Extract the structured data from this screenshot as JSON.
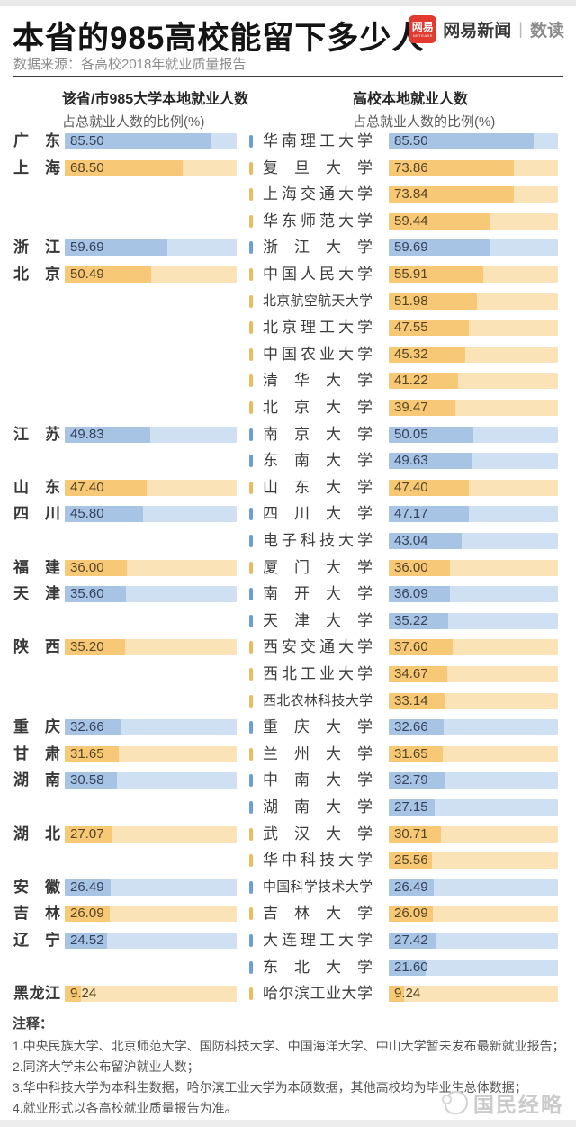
{
  "header": {
    "title": "本省的985高校能留下多少人",
    "source": "数据来源：各高校2018年就业质量报告",
    "logo": {
      "badge_text": "网易",
      "badge_sub": "NETEASE",
      "brand": "网易新闻",
      "divider": "|",
      "section": "数读",
      "badge_color": "#e23a30"
    }
  },
  "columns": {
    "left": {
      "line1": "该省/市985大学本地就业人数",
      "line2": "占总就业人数的比例(%)"
    },
    "right": {
      "line1": "高校本地就业人数",
      "line2": "占总就业人数的比例(%)"
    }
  },
  "chart_data": {
    "type": "bar",
    "orientation": "horizontal",
    "unit": "%",
    "axis_max": 100,
    "palette": {
      "blue": {
        "fill": "#a7c4e4",
        "track": "#cfe0f2",
        "tick": "#6d9ed8",
        "text": "#35425c"
      },
      "orange": {
        "fill": "#f7c977",
        "track": "#fae3b6",
        "tick": "#e9bc5f",
        "text": "#584423"
      }
    },
    "provinces": [
      {
        "name": "广东",
        "value": 85.5,
        "label": "85.50",
        "color": "blue",
        "row": 0
      },
      {
        "name": "上海",
        "value": 68.5,
        "label": "68.50",
        "color": "orange",
        "row": 1
      },
      {
        "name": "浙江",
        "value": 59.69,
        "label": "59.69",
        "color": "blue",
        "row": 4
      },
      {
        "name": "北京",
        "value": 50.49,
        "label": "50.49",
        "color": "orange",
        "row": 5
      },
      {
        "name": "江苏",
        "value": 49.83,
        "label": "49.83",
        "color": "blue",
        "row": 11
      },
      {
        "name": "山东",
        "value": 47.4,
        "label": "47.40",
        "color": "orange",
        "row": 13
      },
      {
        "name": "四川",
        "value": 45.8,
        "label": "45.80",
        "color": "blue",
        "row": 14
      },
      {
        "name": "福建",
        "value": 36.0,
        "label": "36.00",
        "color": "orange",
        "row": 16
      },
      {
        "name": "天津",
        "value": 35.6,
        "label": "35.60",
        "color": "blue",
        "row": 17
      },
      {
        "name": "陕西",
        "value": 35.2,
        "label": "35.20",
        "color": "orange",
        "row": 19
      },
      {
        "name": "重庆",
        "value": 32.66,
        "label": "32.66",
        "color": "blue",
        "row": 22
      },
      {
        "name": "甘肃",
        "value": 31.65,
        "label": "31.65",
        "color": "orange",
        "row": 23
      },
      {
        "name": "湖南",
        "value": 30.58,
        "label": "30.58",
        "color": "blue",
        "row": 24
      },
      {
        "name": "湖北",
        "value": 27.07,
        "label": "27.07",
        "color": "orange",
        "row": 26
      },
      {
        "name": "安徽",
        "value": 26.49,
        "label": "26.49",
        "color": "blue",
        "row": 28
      },
      {
        "name": "吉林",
        "value": 26.09,
        "label": "26.09",
        "color": "orange",
        "row": 29
      },
      {
        "name": "辽宁",
        "value": 24.52,
        "label": "24.52",
        "color": "blue",
        "row": 30
      },
      {
        "name": "黑龙江",
        "value": 9.24,
        "label": "9.24",
        "color": "orange",
        "row": 32
      }
    ],
    "universities": [
      {
        "name": "华南理工大学",
        "value": 85.5,
        "label": "85.50",
        "color": "blue"
      },
      {
        "name": "复旦大学",
        "value": 73.86,
        "label": "73.86",
        "color": "orange"
      },
      {
        "name": "上海交通大学",
        "value": 73.84,
        "label": "73.84",
        "color": "orange"
      },
      {
        "name": "华东师范大学",
        "value": 59.44,
        "label": "59.44",
        "color": "orange"
      },
      {
        "name": "浙江大学",
        "value": 59.69,
        "label": "59.69",
        "color": "blue"
      },
      {
        "name": "中国人民大学",
        "value": 55.91,
        "label": "55.91",
        "color": "orange"
      },
      {
        "name": "北京航空航天大学",
        "value": 51.98,
        "label": "51.98",
        "color": "orange"
      },
      {
        "name": "北京理工大学",
        "value": 47.55,
        "label": "47.55",
        "color": "orange"
      },
      {
        "name": "中国农业大学",
        "value": 45.32,
        "label": "45.32",
        "color": "orange"
      },
      {
        "name": "清华大学",
        "value": 41.22,
        "label": "41.22",
        "color": "orange"
      },
      {
        "name": "北京大学",
        "value": 39.47,
        "label": "39.47",
        "color": "orange"
      },
      {
        "name": "南京大学",
        "value": 50.05,
        "label": "50.05",
        "color": "blue"
      },
      {
        "name": "东南大学",
        "value": 49.63,
        "label": "49.63",
        "color": "blue"
      },
      {
        "name": "山东大学",
        "value": 47.4,
        "label": "47.40",
        "color": "orange"
      },
      {
        "name": "四川大学",
        "value": 47.17,
        "label": "47.17",
        "color": "blue"
      },
      {
        "name": "电子科技大学",
        "value": 43.04,
        "label": "43.04",
        "color": "blue"
      },
      {
        "name": "厦门大学",
        "value": 36.0,
        "label": "36.00",
        "color": "orange"
      },
      {
        "name": "南开大学",
        "value": 36.09,
        "label": "36.09",
        "color": "blue"
      },
      {
        "name": "天津大学",
        "value": 35.22,
        "label": "35.22",
        "color": "blue"
      },
      {
        "name": "西安交通大学",
        "value": 37.6,
        "label": "37.60",
        "color": "orange"
      },
      {
        "name": "西北工业大学",
        "value": 34.67,
        "label": "34.67",
        "color": "orange"
      },
      {
        "name": "西北农林科技大学",
        "value": 33.14,
        "label": "33.14",
        "color": "orange"
      },
      {
        "name": "重庆大学",
        "value": 32.66,
        "label": "32.66",
        "color": "blue"
      },
      {
        "name": "兰州大学",
        "value": 31.65,
        "label": "31.65",
        "color": "orange"
      },
      {
        "name": "中南大学",
        "value": 32.79,
        "label": "32.79",
        "color": "blue"
      },
      {
        "name": "湖南大学",
        "value": 27.15,
        "label": "27.15",
        "color": "blue"
      },
      {
        "name": "武汉大学",
        "value": 30.71,
        "label": "30.71",
        "color": "orange"
      },
      {
        "name": "华中科技大学",
        "value": 25.56,
        "label": "25.56",
        "color": "orange"
      },
      {
        "name": "中国科学技术大学",
        "value": 26.49,
        "label": "26.49",
        "color": "blue"
      },
      {
        "name": "吉林大学",
        "value": 26.09,
        "label": "26.09",
        "color": "orange"
      },
      {
        "name": "大连理工大学",
        "value": 27.42,
        "label": "27.42",
        "color": "blue"
      },
      {
        "name": "东北大学",
        "value": 21.6,
        "label": "21.60",
        "color": "blue"
      },
      {
        "name": "哈尔滨工业大学",
        "value": 9.24,
        "label": "9.24",
        "color": "orange"
      }
    ]
  },
  "notes": {
    "heading": "注释：",
    "lines": [
      "1.中央民族大学、北京师范大学、国防科技大学、中国海洋大学、中山大学暂未发布最新就业报告；",
      "2.同济大学未公布留沪就业人数；",
      "3.华中科技大学为本科生数据，哈尔滨工业大学为本硕数据，其他高校均为毕业生总体数据；",
      "4.就业形式以各高校就业质量报告为准。"
    ]
  },
  "watermark": {
    "text": "国民经略"
  }
}
